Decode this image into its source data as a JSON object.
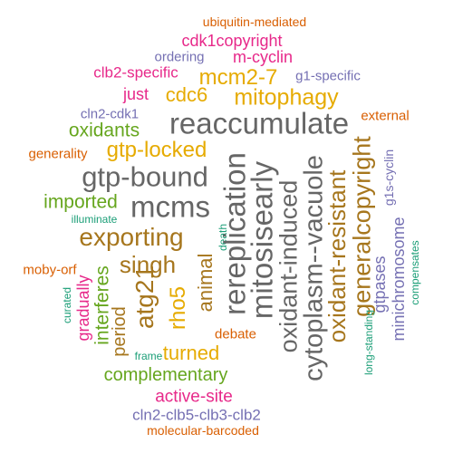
{
  "colors": {
    "orange": "#d95f02",
    "magenta": "#e7298a",
    "purple": "#7570b3",
    "gold": "#e6ab02",
    "green": "#66a61e",
    "brown": "#a6761d",
    "teal": "#1b9e77",
    "gray": "#666666"
  },
  "words": [
    {
      "text": "ubiquitin-mediated",
      "color": "orange"
    },
    {
      "text": "cdk1copyright",
      "color": "magenta"
    },
    {
      "text": "ordering",
      "color": "purple"
    },
    {
      "text": "m-cyclin",
      "color": "magenta"
    },
    {
      "text": "clb2-specific",
      "color": "magenta"
    },
    {
      "text": "mcm2-7",
      "color": "gold"
    },
    {
      "text": "g1-specific",
      "color": "purple"
    },
    {
      "text": "just",
      "color": "magenta"
    },
    {
      "text": "cdc6",
      "color": "gold"
    },
    {
      "text": "mitophagy",
      "color": "gold"
    },
    {
      "text": "cln2-cdk1",
      "color": "purple"
    },
    {
      "text": "external",
      "color": "orange"
    },
    {
      "text": "oxidants",
      "color": "green"
    },
    {
      "text": "reaccumulate",
      "color": "gray"
    },
    {
      "text": "generality",
      "color": "orange"
    },
    {
      "text": "gtp-locked",
      "color": "gold"
    },
    {
      "text": "gtp-bound",
      "color": "gray"
    },
    {
      "text": "imported",
      "color": "green"
    },
    {
      "text": "mcms",
      "color": "gray"
    },
    {
      "text": "illuminate",
      "color": "teal"
    },
    {
      "text": "exporting",
      "color": "brown"
    },
    {
      "text": "singh",
      "color": "brown"
    },
    {
      "text": "moby-orf",
      "color": "orange"
    },
    {
      "text": "gradually",
      "color": "magenta"
    },
    {
      "text": "interferes",
      "color": "green"
    },
    {
      "text": "curated",
      "color": "teal"
    },
    {
      "text": "period",
      "color": "brown"
    },
    {
      "text": "atg21",
      "color": "brown"
    },
    {
      "text": "rho5",
      "color": "gold"
    },
    {
      "text": "animal",
      "color": "brown"
    },
    {
      "text": "death",
      "color": "teal"
    },
    {
      "text": "rereplication",
      "color": "gray"
    },
    {
      "text": "mitosisearly",
      "color": "gray"
    },
    {
      "text": "oxidant-induced",
      "color": "gray"
    },
    {
      "text": "cytoplasm--vacuole",
      "color": "gray"
    },
    {
      "text": "oxidant-resistant",
      "color": "brown"
    },
    {
      "text": "generalcopyright",
      "color": "brown"
    },
    {
      "text": "gtpases",
      "color": "purple"
    },
    {
      "text": "g1s-cyclin",
      "color": "purple"
    },
    {
      "text": "minichromosome",
      "color": "purple"
    },
    {
      "text": "compensates",
      "color": "teal"
    },
    {
      "text": "long-standing",
      "color": "teal"
    },
    {
      "text": "debate",
      "color": "orange"
    },
    {
      "text": "turned",
      "color": "gold"
    },
    {
      "text": "frame",
      "color": "teal"
    },
    {
      "text": "complementary",
      "color": "green"
    },
    {
      "text": "active-site",
      "color": "magenta"
    },
    {
      "text": "cln2-clb5-clb3-clb2",
      "color": "purple"
    },
    {
      "text": "molecular-barcoded",
      "color": "orange"
    }
  ]
}
